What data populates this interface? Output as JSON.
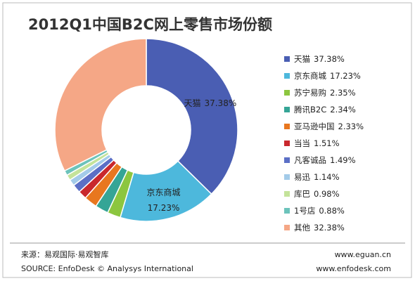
{
  "chart_data": {
    "type": "donut",
    "title": "2012Q1中国B2C网上零售市场份额",
    "categories": [
      "天猫",
      "京东商城",
      "苏宁易购",
      "腾讯B2C",
      "亚马逊中国",
      "当当",
      "凡客诚品",
      "易迅",
      "库巴",
      "1号店",
      "其他"
    ],
    "values": [
      37.38,
      17.23,
      2.35,
      2.34,
      2.33,
      1.51,
      1.49,
      1.14,
      0.98,
      0.88,
      32.38
    ],
    "value_labels": [
      "37.38%",
      "17.23%",
      "2.35%",
      "2.34%",
      "2.33%",
      "1.51%",
      "1.49%",
      "1.14%",
      "0.98%",
      "0.88%",
      "32.38%"
    ],
    "colors": [
      "#4a5eb3",
      "#4db8dc",
      "#8cc63f",
      "#35a596",
      "#e8771f",
      "#c9282d",
      "#5b6fc6",
      "#a3cbe9",
      "#c4e39a",
      "#6cc3bb",
      "#f5a786"
    ],
    "legend": "right",
    "source_cn": "来源：易观国际·易观智库",
    "source_en": "SOURCE: EnfoDesk © Analysys International",
    "website_1": "www.eguan.cn",
    "website_2": "www.enfodesk.com"
  }
}
